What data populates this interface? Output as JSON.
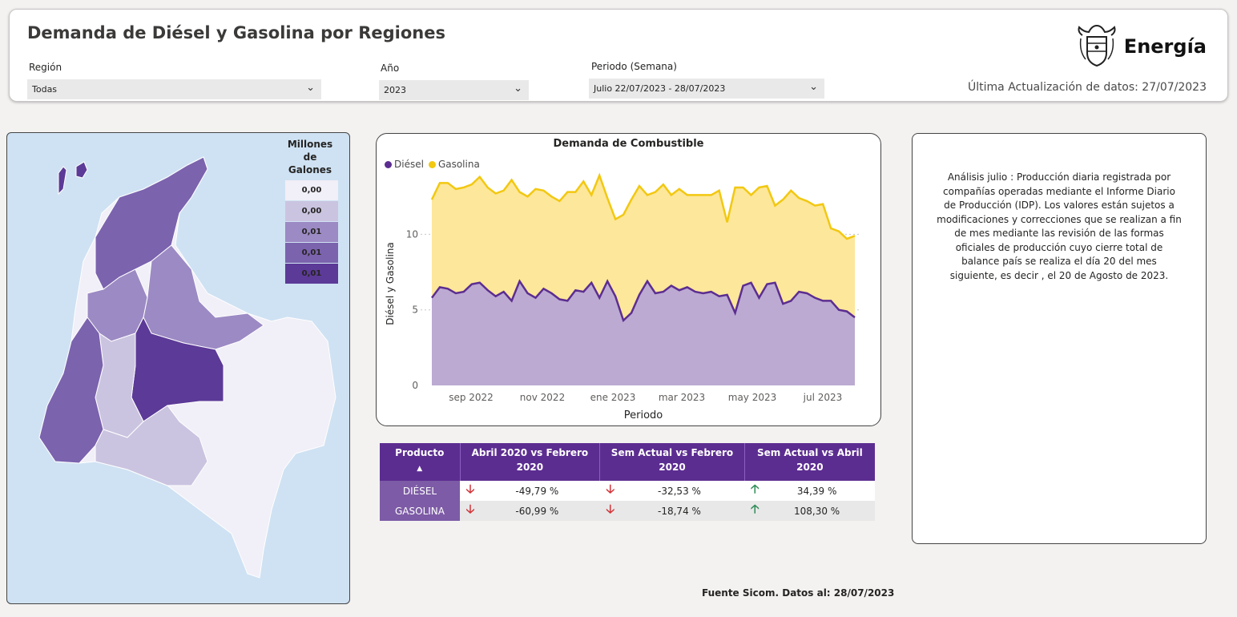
{
  "header": {
    "title": "Demanda de Diésel y Gasolina por Regiones",
    "brand": "Energía",
    "update_text": "Última Actualización de datos: 27/07/2023"
  },
  "filters": {
    "region": {
      "label": "Región",
      "value": "Todas"
    },
    "year": {
      "label": "Año",
      "value": "2023"
    },
    "period": {
      "label": "Periodo (Semana)",
      "value": "Julio 22/07/2023 - 28/07/2023"
    }
  },
  "map": {
    "legend_title_1": "Millones de",
    "legend_title_2": "Galones",
    "legend": [
      {
        "label": "0,00",
        "color": "#f1eff7"
      },
      {
        "label": "0,00",
        "color": "#cbc4e0"
      },
      {
        "label": "0,01",
        "color": "#9c8ac4"
      },
      {
        "label": "0,01",
        "color": "#7b63ae"
      },
      {
        "label": "0,01",
        "color": "#5c3a97"
      }
    ]
  },
  "chart_data": {
    "type": "area",
    "title": "Demanda de Combustible",
    "xlabel": "Periodo",
    "ylabel": "Diésel y Gasolina",
    "ylim": [
      0,
      14
    ],
    "yticks": [
      "0",
      "5",
      "10"
    ],
    "xticks": [
      "sep 2022",
      "nov 2022",
      "ene 2023",
      "mar 2023",
      "may 2023",
      "jul 2023"
    ],
    "series": [
      {
        "name": "Diésel",
        "color": "#5c2d91",
        "fill": "#bcaad2",
        "values": [
          5.8,
          6.5,
          6.4,
          6.1,
          6.2,
          6.7,
          6.8,
          6.3,
          5.9,
          6.2,
          5.6,
          6.9,
          6.1,
          5.8,
          6.4,
          6.1,
          5.7,
          5.6,
          6.3,
          6.2,
          6.8,
          5.8,
          6.9,
          5.9,
          4.3,
          4.8,
          6.0,
          6.9,
          6.1,
          6.2,
          6.6,
          6.3,
          6.5,
          6.2,
          6.1,
          6.2,
          5.9,
          6.0,
          4.8,
          6.6,
          6.8,
          5.8,
          6.7,
          6.8,
          5.4,
          5.6,
          6.2,
          6.1,
          5.8,
          5.6,
          5.6,
          5.0,
          4.9,
          4.5
        ]
      },
      {
        "name": "Gasolina",
        "color": "#f2c811",
        "fill": "#fde79a",
        "values": [
          12.3,
          13.4,
          13.4,
          13.0,
          13.1,
          13.3,
          13.8,
          13.1,
          12.7,
          12.9,
          13.6,
          12.8,
          12.5,
          13.0,
          12.9,
          12.5,
          12.2,
          12.8,
          12.8,
          13.5,
          12.6,
          13.9,
          12.4,
          11.0,
          11.3,
          12.3,
          13.2,
          12.6,
          12.8,
          13.3,
          12.6,
          13.0,
          12.6,
          12.6,
          12.6,
          12.6,
          12.9,
          10.8,
          13.1,
          13.1,
          12.6,
          13.1,
          13.2,
          11.9,
          12.3,
          12.9,
          12.4,
          12.2,
          11.9,
          12.0,
          10.4,
          10.2,
          9.7,
          9.9
        ]
      }
    ]
  },
  "table": {
    "headers": [
      "Producto",
      "Abril 2020 vs Febrero 2020",
      "Sem Actual vs Febrero 2020",
      "Sem Actual vs Abril 2020"
    ],
    "rows": [
      {
        "product": "DIÉSEL",
        "c1": "-49,79 %",
        "c2": "-32,53 %",
        "c3": "34,39 %"
      },
      {
        "product": "GASOLINA",
        "c1": "-60,99 %",
        "c2": "-18,74 %",
        "c3": "108,30 %"
      }
    ]
  },
  "analysis": "Análisis julio : Producción diaria registrada por compañías operadas mediante el Informe Diario de Producción (IDP). Los valores están sujetos a modificaciones y correcciones que se realizan a fin de mes mediante las revisión de las formas oficiales de producción cuyo cierre total de balance país se realiza el día 20 del mes siguiente, es decir , el 20 de Agosto de 2023.",
  "footer": "Fuente Sicom. Datos al: 28/07/2023"
}
